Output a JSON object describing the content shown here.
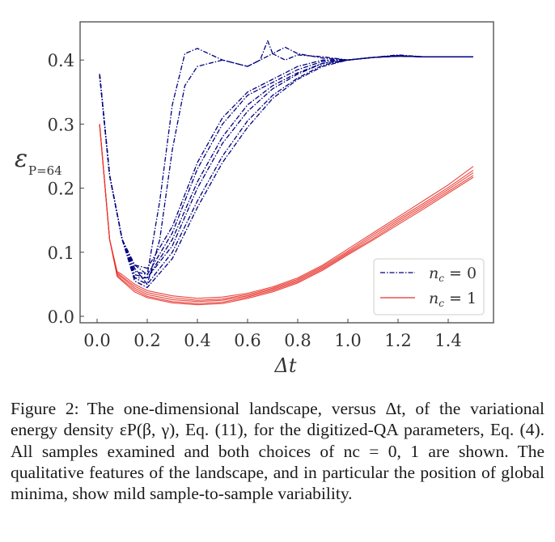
{
  "figure": {
    "caption_label": "Figure 2:",
    "caption_text": "The one-dimensional landscape, versus Δt, of the variational energy density εP(β, γ), Eq. (11), for the digitized-QA parameters, Eq. (4).  All samples examined and both choices of nc = 0, 1 are shown. The qualitative features of the landscape, and in particular the position of global minima, show mild sample-to-sample variability."
  },
  "colors": {
    "nc0": "#00007f",
    "nc1": "#e8322a",
    "axis": "#333333",
    "legend_border": "#cccccc"
  },
  "chart_data": {
    "type": "line",
    "title": "",
    "xlabel": "Δt",
    "ylabel": "ε_{P=64}",
    "xlim": [
      -0.06,
      1.58
    ],
    "ylim": [
      -0.01,
      0.455
    ],
    "xticks": [
      0.0,
      0.2,
      0.4,
      0.6,
      0.8,
      1.0,
      1.2,
      1.4
    ],
    "xtick_labels": [
      "0.0",
      "0.2",
      "0.4",
      "0.6",
      "0.8",
      "1.0",
      "1.2",
      "1.4"
    ],
    "yticks": [
      0.0,
      0.1,
      0.2,
      0.3,
      0.4
    ],
    "ytick_labels": [
      "0.0",
      "0.1",
      "0.2",
      "0.3",
      "0.4"
    ],
    "grid": false,
    "legend": {
      "position": "lower right",
      "entries": [
        {
          "label": "nc = 0",
          "style": "dash-dot",
          "color": "#00007f"
        },
        {
          "label": "nc = 1",
          "style": "solid",
          "color": "#e8322a"
        }
      ]
    },
    "series": [
      {
        "name": "nc = 0, sample 1",
        "group": "nc0",
        "x": [
          0.01,
          0.05,
          0.1,
          0.15,
          0.2,
          0.25,
          0.3,
          0.35,
          0.4,
          0.5,
          0.6,
          0.65,
          0.7,
          0.75,
          0.8,
          0.9,
          1.0,
          1.1,
          1.2,
          1.3,
          1.4,
          1.5
        ],
        "values": [
          0.378,
          0.22,
          0.12,
          0.08,
          0.065,
          0.18,
          0.33,
          0.41,
          0.418,
          0.4,
          0.39,
          0.4,
          0.41,
          0.4,
          0.408,
          0.405,
          0.4,
          0.404,
          0.408,
          0.405,
          0.405,
          0.405
        ]
      },
      {
        "name": "nc = 0, sample 2",
        "group": "nc0",
        "x": [
          0.01,
          0.05,
          0.1,
          0.15,
          0.2,
          0.25,
          0.3,
          0.35,
          0.4,
          0.5,
          0.6,
          0.65,
          0.68,
          0.7,
          0.75,
          0.8,
          0.9,
          1.0,
          1.1,
          1.2,
          1.3,
          1.4,
          1.5
        ],
        "values": [
          0.378,
          0.22,
          0.12,
          0.075,
          0.05,
          0.12,
          0.26,
          0.36,
          0.39,
          0.4,
          0.39,
          0.4,
          0.43,
          0.41,
          0.42,
          0.41,
          0.403,
          0.4,
          0.404,
          0.407,
          0.405,
          0.405,
          0.405
        ]
      },
      {
        "name": "nc = 0, sample 3",
        "group": "nc0",
        "x": [
          0.01,
          0.05,
          0.1,
          0.15,
          0.2,
          0.3,
          0.4,
          0.5,
          0.6,
          0.7,
          0.8,
          0.9,
          1.0,
          1.1,
          1.2,
          1.3,
          1.4,
          1.5
        ],
        "values": [
          0.378,
          0.22,
          0.12,
          0.08,
          0.075,
          0.14,
          0.24,
          0.31,
          0.35,
          0.37,
          0.39,
          0.4,
          0.4,
          0.404,
          0.406,
          0.405,
          0.405,
          0.405
        ]
      },
      {
        "name": "nc = 0, sample 4",
        "group": "nc0",
        "x": [
          0.01,
          0.05,
          0.1,
          0.15,
          0.2,
          0.3,
          0.4,
          0.5,
          0.6,
          0.7,
          0.8,
          0.9,
          1.0,
          1.1,
          1.2,
          1.3,
          1.4,
          1.5
        ],
        "values": [
          0.378,
          0.22,
          0.12,
          0.07,
          0.065,
          0.13,
          0.23,
          0.3,
          0.345,
          0.365,
          0.385,
          0.398,
          0.4,
          0.404,
          0.406,
          0.405,
          0.405,
          0.405
        ]
      },
      {
        "name": "nc = 0, sample 5",
        "group": "nc0",
        "x": [
          0.01,
          0.05,
          0.1,
          0.15,
          0.2,
          0.3,
          0.4,
          0.5,
          0.6,
          0.7,
          0.8,
          0.9,
          1.0,
          1.1,
          1.2,
          1.3,
          1.4,
          1.5
        ],
        "values": [
          0.378,
          0.22,
          0.12,
          0.065,
          0.06,
          0.12,
          0.21,
          0.28,
          0.33,
          0.36,
          0.38,
          0.395,
          0.4,
          0.404,
          0.406,
          0.405,
          0.405,
          0.405
        ]
      },
      {
        "name": "nc = 0, sample 6",
        "group": "nc0",
        "x": [
          0.01,
          0.05,
          0.1,
          0.15,
          0.2,
          0.3,
          0.4,
          0.5,
          0.6,
          0.7,
          0.8,
          0.9,
          1.0,
          1.1,
          1.2,
          1.3,
          1.4,
          1.5
        ],
        "values": [
          0.378,
          0.22,
          0.12,
          0.06,
          0.06,
          0.11,
          0.2,
          0.27,
          0.32,
          0.355,
          0.378,
          0.395,
          0.4,
          0.404,
          0.406,
          0.405,
          0.405,
          0.405
        ]
      },
      {
        "name": "nc = 0, sample 7",
        "group": "nc0",
        "x": [
          0.01,
          0.05,
          0.1,
          0.15,
          0.2,
          0.3,
          0.4,
          0.5,
          0.6,
          0.7,
          0.8,
          0.9,
          1.0,
          1.1,
          1.2,
          1.3,
          1.4,
          1.5
        ],
        "values": [
          0.378,
          0.22,
          0.12,
          0.06,
          0.05,
          0.1,
          0.18,
          0.25,
          0.305,
          0.345,
          0.372,
          0.392,
          0.4,
          0.404,
          0.406,
          0.405,
          0.405,
          0.405
        ]
      },
      {
        "name": "nc = 0, sample 8",
        "group": "nc0",
        "x": [
          0.01,
          0.05,
          0.1,
          0.15,
          0.2,
          0.3,
          0.4,
          0.5,
          0.6,
          0.7,
          0.8,
          0.9,
          1.0,
          1.1,
          1.2,
          1.3,
          1.4,
          1.5
        ],
        "values": [
          0.378,
          0.22,
          0.12,
          0.055,
          0.045,
          0.09,
          0.17,
          0.24,
          0.295,
          0.34,
          0.37,
          0.39,
          0.4,
          0.404,
          0.406,
          0.405,
          0.405,
          0.405
        ]
      },
      {
        "name": "nc = 1, sample 1",
        "group": "nc1",
        "x": [
          0.01,
          0.05,
          0.08,
          0.1,
          0.15,
          0.2,
          0.3,
          0.4,
          0.5,
          0.6,
          0.7,
          0.8,
          0.9,
          1.0,
          1.1,
          1.2,
          1.3,
          1.4,
          1.5
        ],
        "values": [
          0.3,
          0.12,
          0.07,
          0.065,
          0.05,
          0.04,
          0.032,
          0.028,
          0.03,
          0.036,
          0.046,
          0.06,
          0.08,
          0.105,
          0.13,
          0.155,
          0.18,
          0.205,
          0.234
        ]
      },
      {
        "name": "nc = 1, sample 2",
        "group": "nc1",
        "x": [
          0.01,
          0.05,
          0.08,
          0.1,
          0.15,
          0.2,
          0.3,
          0.4,
          0.5,
          0.6,
          0.7,
          0.8,
          0.9,
          1.0,
          1.1,
          1.2,
          1.3,
          1.4,
          1.5
        ],
        "values": [
          0.3,
          0.12,
          0.068,
          0.062,
          0.047,
          0.037,
          0.029,
          0.025,
          0.027,
          0.034,
          0.044,
          0.058,
          0.078,
          0.102,
          0.127,
          0.152,
          0.176,
          0.201,
          0.228
        ]
      },
      {
        "name": "nc = 1, sample 3",
        "group": "nc1",
        "x": [
          0.01,
          0.05,
          0.08,
          0.1,
          0.15,
          0.2,
          0.3,
          0.4,
          0.5,
          0.6,
          0.7,
          0.8,
          0.9,
          1.0,
          1.1,
          1.2,
          1.3,
          1.4,
          1.5
        ],
        "values": [
          0.3,
          0.12,
          0.066,
          0.06,
          0.044,
          0.034,
          0.026,
          0.023,
          0.025,
          0.032,
          0.042,
          0.056,
          0.076,
          0.1,
          0.124,
          0.149,
          0.173,
          0.198,
          0.224
        ]
      },
      {
        "name": "nc = 1, sample 4",
        "group": "nc1",
        "x": [
          0.01,
          0.05,
          0.08,
          0.1,
          0.15,
          0.2,
          0.3,
          0.4,
          0.5,
          0.6,
          0.7,
          0.8,
          0.9,
          1.0,
          1.1,
          1.2,
          1.3,
          1.4,
          1.5
        ],
        "values": [
          0.3,
          0.12,
          0.064,
          0.057,
          0.041,
          0.031,
          0.023,
          0.02,
          0.022,
          0.03,
          0.04,
          0.054,
          0.074,
          0.098,
          0.121,
          0.146,
          0.17,
          0.195,
          0.22
        ]
      },
      {
        "name": "nc = 1, sample 5",
        "group": "nc1",
        "x": [
          0.01,
          0.05,
          0.08,
          0.1,
          0.15,
          0.2,
          0.3,
          0.4,
          0.5,
          0.6,
          0.7,
          0.8,
          0.9,
          1.0,
          1.1,
          1.2,
          1.3,
          1.4,
          1.5
        ],
        "values": [
          0.3,
          0.12,
          0.062,
          0.055,
          0.038,
          0.029,
          0.021,
          0.018,
          0.02,
          0.028,
          0.038,
          0.052,
          0.072,
          0.096,
          0.119,
          0.143,
          0.167,
          0.192,
          0.217
        ]
      }
    ]
  }
}
